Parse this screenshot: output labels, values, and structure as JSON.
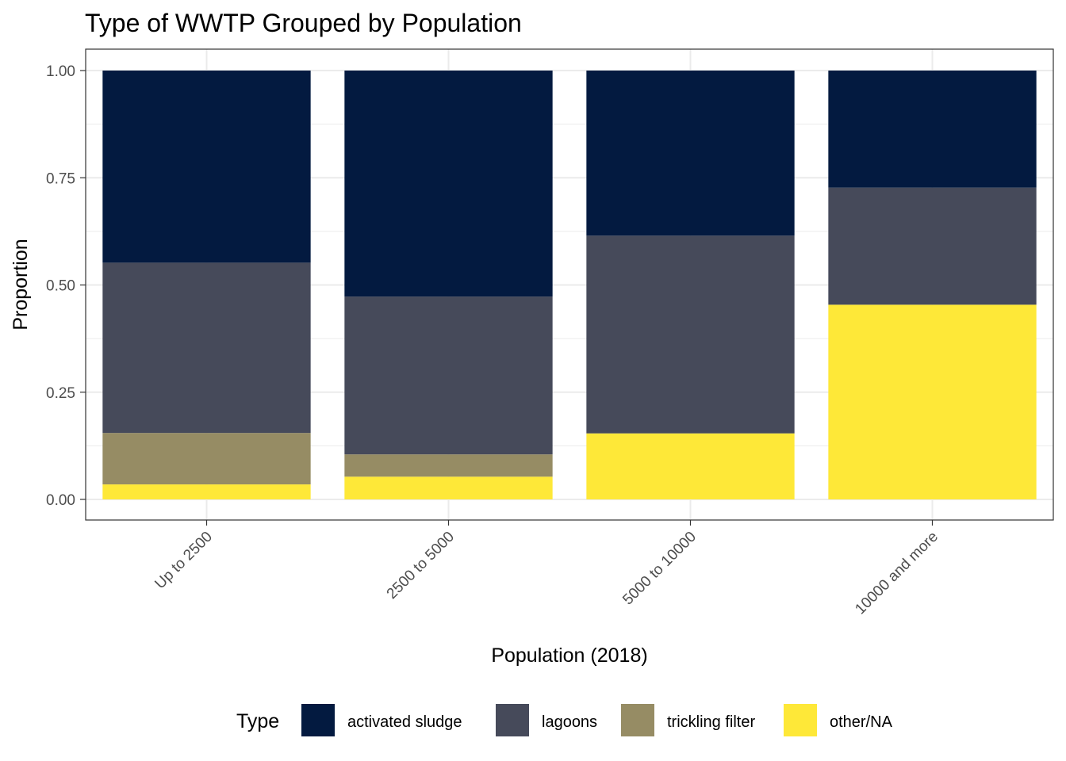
{
  "chart_data": {
    "type": "bar",
    "stacked": "proportion",
    "title": "Type of WWTP Grouped by Population",
    "xlabel": "Population (2018)",
    "ylabel": "Proportion",
    "ylim": [
      0,
      1
    ],
    "yticks": [
      "0.00",
      "0.25",
      "0.50",
      "0.75",
      "1.00"
    ],
    "grid": true,
    "legend_position": "bottom",
    "legend_title": "Type",
    "categories": [
      "Up to 2500",
      "2500 to 5000",
      "5000 to 10000",
      "10000 and more"
    ],
    "series": [
      {
        "name": "activated sludge",
        "color": "#031a40",
        "values": [
          0.448,
          0.527,
          0.385,
          0.273
        ]
      },
      {
        "name": "lagoons",
        "color": "#464a5a",
        "values": [
          0.397,
          0.368,
          0.461,
          0.273
        ]
      },
      {
        "name": "trickling filter",
        "color": "#968c64",
        "values": [
          0.12,
          0.052,
          0.0,
          0.0
        ]
      },
      {
        "name": "other/NA",
        "color": "#fee838",
        "values": [
          0.035,
          0.053,
          0.154,
          0.454
        ]
      }
    ]
  }
}
